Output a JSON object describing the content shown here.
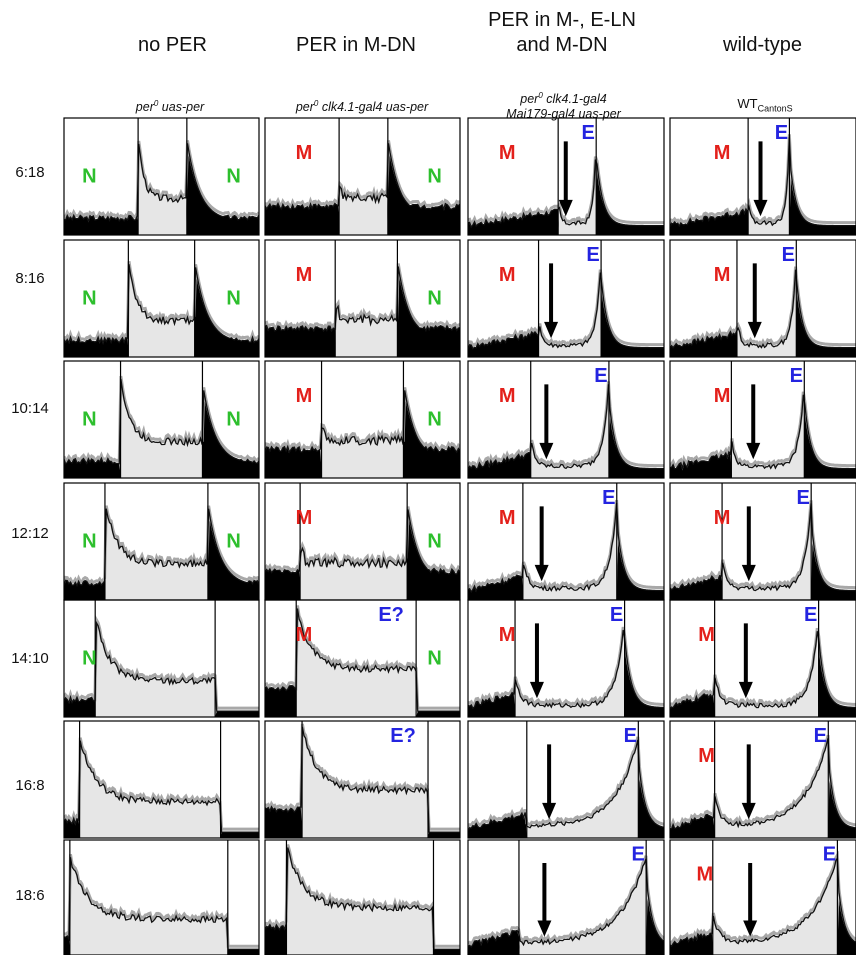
{
  "columns": [
    {
      "title": "no PER",
      "title2": "",
      "sub": "per",
      "sup": "0",
      "sub_rest": " uas-per",
      "sub2": ""
    },
    {
      "title": "PER in M-DN",
      "title2": "",
      "sub": "per",
      "sup": "0",
      "sub_rest": " clk4.1-gal4 uas-per",
      "sub2": ""
    },
    {
      "title": "PER in M-, E-LN",
      "title2": "and M-DN",
      "sub": "per",
      "sup": "0",
      "sub_rest": " clk4.1-gal4",
      "sub2": "Mai179-gal4 uas-per"
    },
    {
      "title": "wild-type",
      "title2": "",
      "sub": "WT",
      "sup": "",
      "sub_rest": "",
      "sub_suffix": "CantonS",
      "sub2": ""
    }
  ],
  "rows": [
    "6:18",
    "8:16",
    "10:14",
    "12:12",
    "14:10",
    "16:8",
    "18:6"
  ],
  "colors": {
    "M": "#e3201b",
    "E": "#2424e0",
    "N": "#2dbf2d",
    "dark": "#000000",
    "light": "#e6e6e6",
    "trace": "#111111",
    "sem": "#a8a8a8"
  },
  "chart_data": {
    "type": "area",
    "description_grid": "7 photoperiods x 4 genotypes activity profiles",
    "lights_on_fraction": [
      0.6,
      0.5,
      0.4,
      0.35,
      0.1,
      0.2,
      0.15
    ],
    "panels": [
      [
        {
          "peaks": [],
          "labels": [
            "N",
            "N"
          ]
        },
        {
          "peaks": [
            "M"
          ],
          "labels": [
            "M",
            "N"
          ]
        },
        {
          "peaks": [
            "M",
            "E"
          ],
          "labels": [
            "M",
            "E"
          ]
        },
        {
          "peaks": [
            "M",
            "E"
          ],
          "labels": [
            "M",
            "E"
          ]
        }
      ],
      [
        {
          "peaks": [],
          "labels": [
            "N",
            "N"
          ]
        },
        {
          "peaks": [
            "M"
          ],
          "labels": [
            "M",
            "N"
          ]
        },
        {
          "peaks": [
            "M",
            "E"
          ],
          "labels": [
            "M",
            "E"
          ]
        },
        {
          "peaks": [
            "M",
            "E"
          ],
          "labels": [
            "M",
            "E"
          ]
        }
      ],
      [
        {
          "peaks": [],
          "labels": [
            "N",
            "N"
          ]
        },
        {
          "peaks": [
            "M"
          ],
          "labels": [
            "M",
            "N"
          ]
        },
        {
          "peaks": [
            "M",
            "E"
          ],
          "labels": [
            "M",
            "E"
          ]
        },
        {
          "peaks": [
            "M",
            "E"
          ],
          "labels": [
            "M",
            "E"
          ]
        }
      ],
      [
        {
          "peaks": [],
          "labels": [
            "N",
            "N"
          ]
        },
        {
          "peaks": [
            "M"
          ],
          "labels": [
            "M",
            "N"
          ]
        },
        {
          "peaks": [
            "M",
            "E"
          ],
          "labels": [
            "M",
            "E"
          ]
        },
        {
          "peaks": [
            "M",
            "E"
          ],
          "labels": [
            "M",
            "E"
          ]
        }
      ],
      [
        {
          "peaks": [],
          "labels": [
            "N"
          ]
        },
        {
          "peaks": [
            "M"
          ],
          "labels": [
            "M",
            "E?",
            "N"
          ]
        },
        {
          "peaks": [
            "M",
            "E"
          ],
          "labels": [
            "M",
            "E"
          ]
        },
        {
          "peaks": [
            "M",
            "E"
          ],
          "labels": [
            "M",
            "E"
          ]
        }
      ],
      [
        {
          "peaks": [],
          "labels": []
        },
        {
          "peaks": [],
          "labels": [
            "E?"
          ]
        },
        {
          "peaks": [
            "E"
          ],
          "labels": [
            "E"
          ]
        },
        {
          "peaks": [
            "M",
            "E"
          ],
          "labels": [
            "M",
            "E"
          ]
        }
      ],
      [
        {
          "peaks": [],
          "labels": []
        },
        {
          "peaks": [],
          "labels": []
        },
        {
          "peaks": [
            "E"
          ],
          "labels": [
            "E"
          ]
        },
        {
          "peaks": [
            "M",
            "E"
          ],
          "labels": [
            "M",
            "E"
          ]
        }
      ]
    ]
  }
}
